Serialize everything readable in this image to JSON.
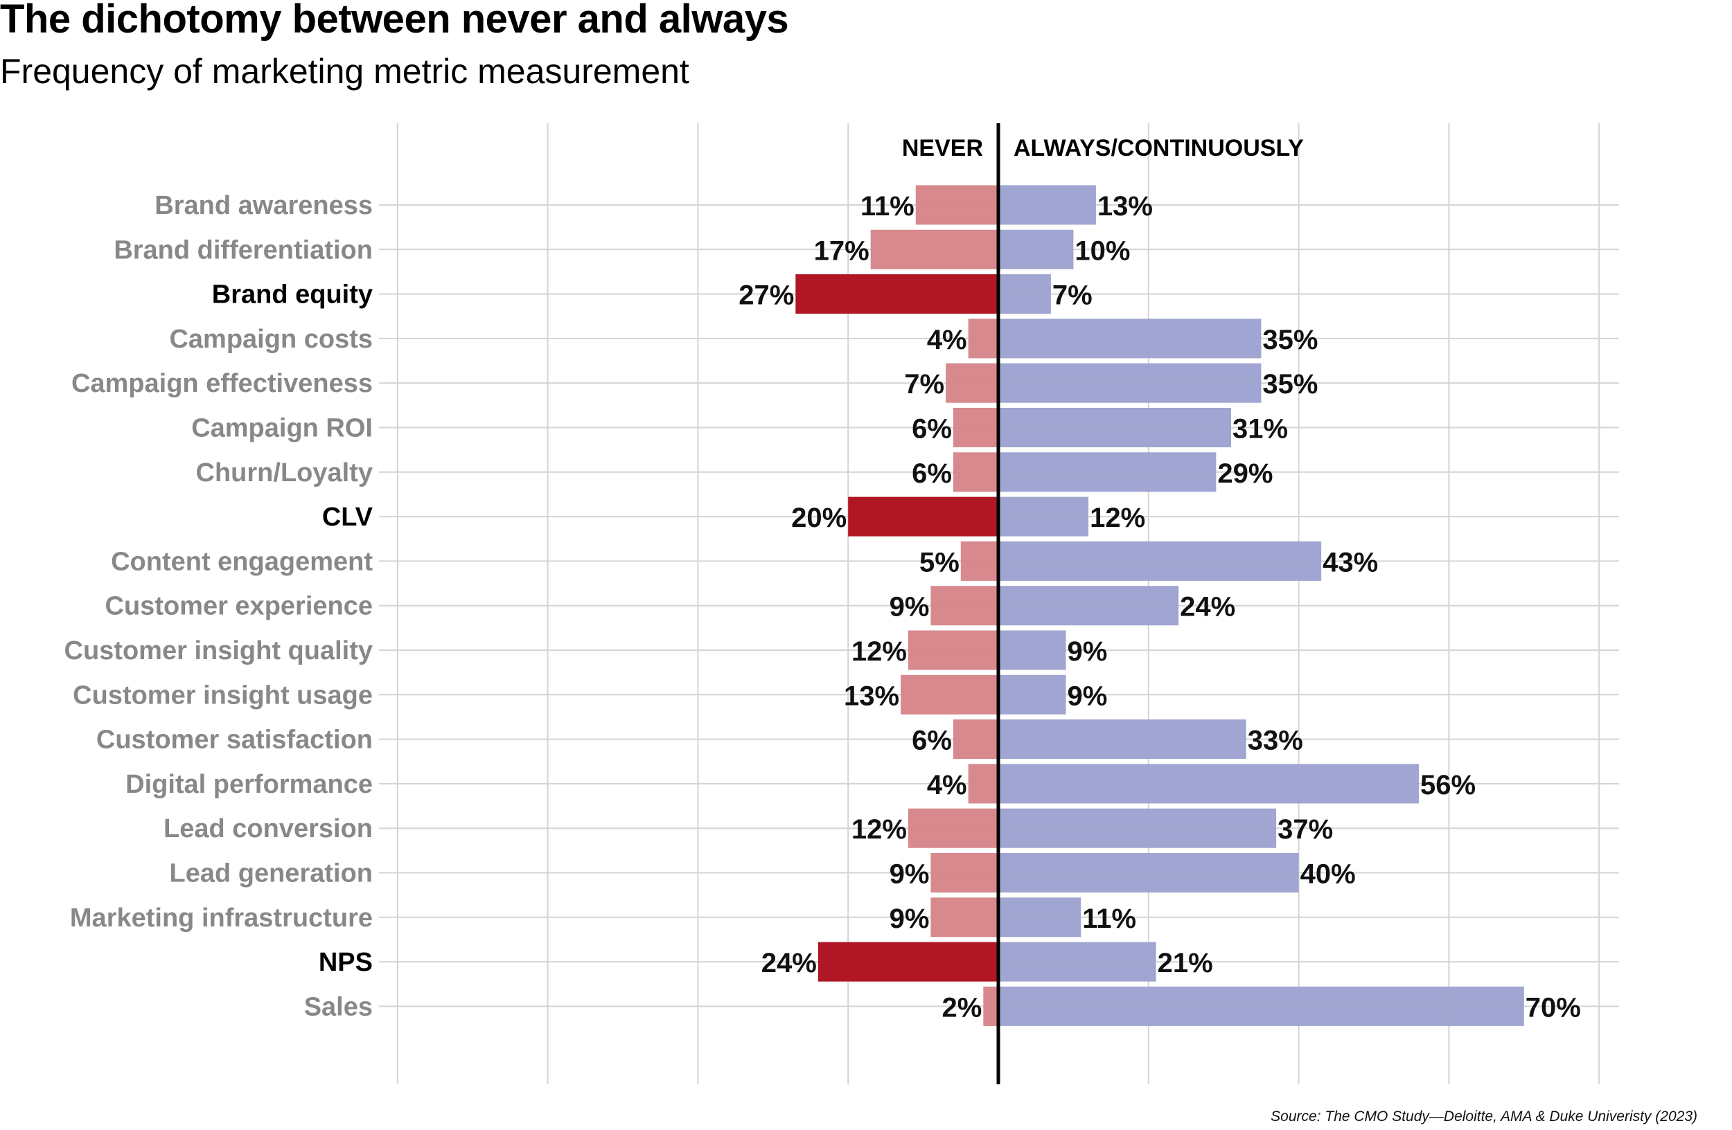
{
  "header": {
    "title": "The dichotomy between never and always",
    "subtitle": "Frequency of marketing metric measurement"
  },
  "footer": {
    "source": "Source: The CMO Study—Deloitte, AMA & Duke Univeristy (2023)"
  },
  "colors": {
    "never_default": "#d6878b",
    "never_highlight": "#b01623",
    "always": "#9ea4d0",
    "label_default": "#888888",
    "label_highlight": "#000000",
    "gridline": "#d4d4d4",
    "zero_line": "#000000"
  },
  "chart_data": {
    "type": "bar",
    "orientation": "horizontal-diverging",
    "title": "The dichotomy between never and always",
    "subtitle": "Frequency of marketing metric measurement",
    "xlabel": "",
    "ylabel": "",
    "xlim": [
      -80,
      80
    ],
    "x_gridlines": [
      -80,
      -60,
      -40,
      -20,
      0,
      20,
      40,
      60,
      80
    ],
    "grid": true,
    "value_format": "percent",
    "series_headers": {
      "never": "NEVER",
      "always": "ALWAYS/CONTINUOUSLY"
    },
    "categories": [
      "Brand awareness",
      "Brand differentiation",
      "Brand equity",
      "Campaign costs",
      "Campaign effectiveness",
      "Campaign ROI",
      "Churn/Loyalty",
      "CLV",
      "Content engagement",
      "Customer experience",
      "Customer insight quality",
      "Customer insight usage",
      "Customer satisfaction",
      "Digital performance",
      "Lead conversion",
      "Lead generation",
      "Marketing infrastructure",
      "NPS",
      "Sales"
    ],
    "highlighted": [
      "Brand equity",
      "CLV",
      "NPS"
    ],
    "series": [
      {
        "name": "Never",
        "direction": "left",
        "values": [
          11,
          17,
          27,
          4,
          7,
          6,
          6,
          20,
          5,
          9,
          12,
          13,
          6,
          4,
          12,
          9,
          9,
          24,
          2
        ]
      },
      {
        "name": "Always/Continuously",
        "direction": "right",
        "values": [
          13,
          10,
          7,
          35,
          35,
          31,
          29,
          12,
          43,
          24,
          9,
          9,
          33,
          56,
          37,
          40,
          11,
          21,
          70
        ]
      }
    ]
  }
}
